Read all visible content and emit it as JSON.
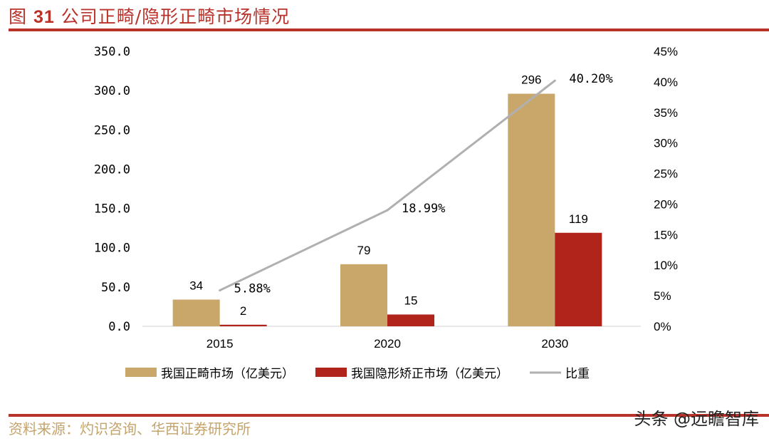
{
  "title_prefix": "图",
  "title_num": "31",
  "title_text": "公司正畸/隐形正畸市场情况",
  "source": "资料来源：灼识咨询、华西证券研究所",
  "watermark": "头条 @远瞻智库",
  "colors": {
    "accent": "#b8322a",
    "tan": "#c9a76b",
    "red": "#b0241c",
    "line": "#b0b0b0"
  },
  "chart_data": {
    "type": "bar+line",
    "categories": [
      "2015",
      "2020",
      "2030"
    ],
    "series": [
      {
        "name": "我国正畸市场（亿美元）",
        "type": "bar",
        "axis": "left",
        "values": [
          34,
          79,
          296
        ],
        "labels": [
          "34",
          "79",
          "296"
        ]
      },
      {
        "name": "我国隐形矫正市场（亿美元）",
        "type": "bar",
        "axis": "left",
        "values": [
          2,
          15,
          119
        ],
        "labels": [
          "2",
          "15",
          "119"
        ]
      },
      {
        "name": "比重",
        "type": "line",
        "axis": "right",
        "values": [
          5.88,
          18.99,
          40.2
        ],
        "labels": [
          "5.88%",
          "18.99%",
          "40.20%"
        ]
      }
    ],
    "left_ylim": [
      0,
      350
    ],
    "left_ticks": [
      "0.0",
      "50.0",
      "100.0",
      "150.0",
      "200.0",
      "250.0",
      "300.0",
      "350.0"
    ],
    "right_ylim": [
      0,
      45
    ],
    "right_ticks": [
      "0%",
      "5%",
      "10%",
      "15%",
      "20%",
      "25%",
      "30%",
      "35%",
      "40%",
      "45%"
    ],
    "legend": "bottom"
  }
}
